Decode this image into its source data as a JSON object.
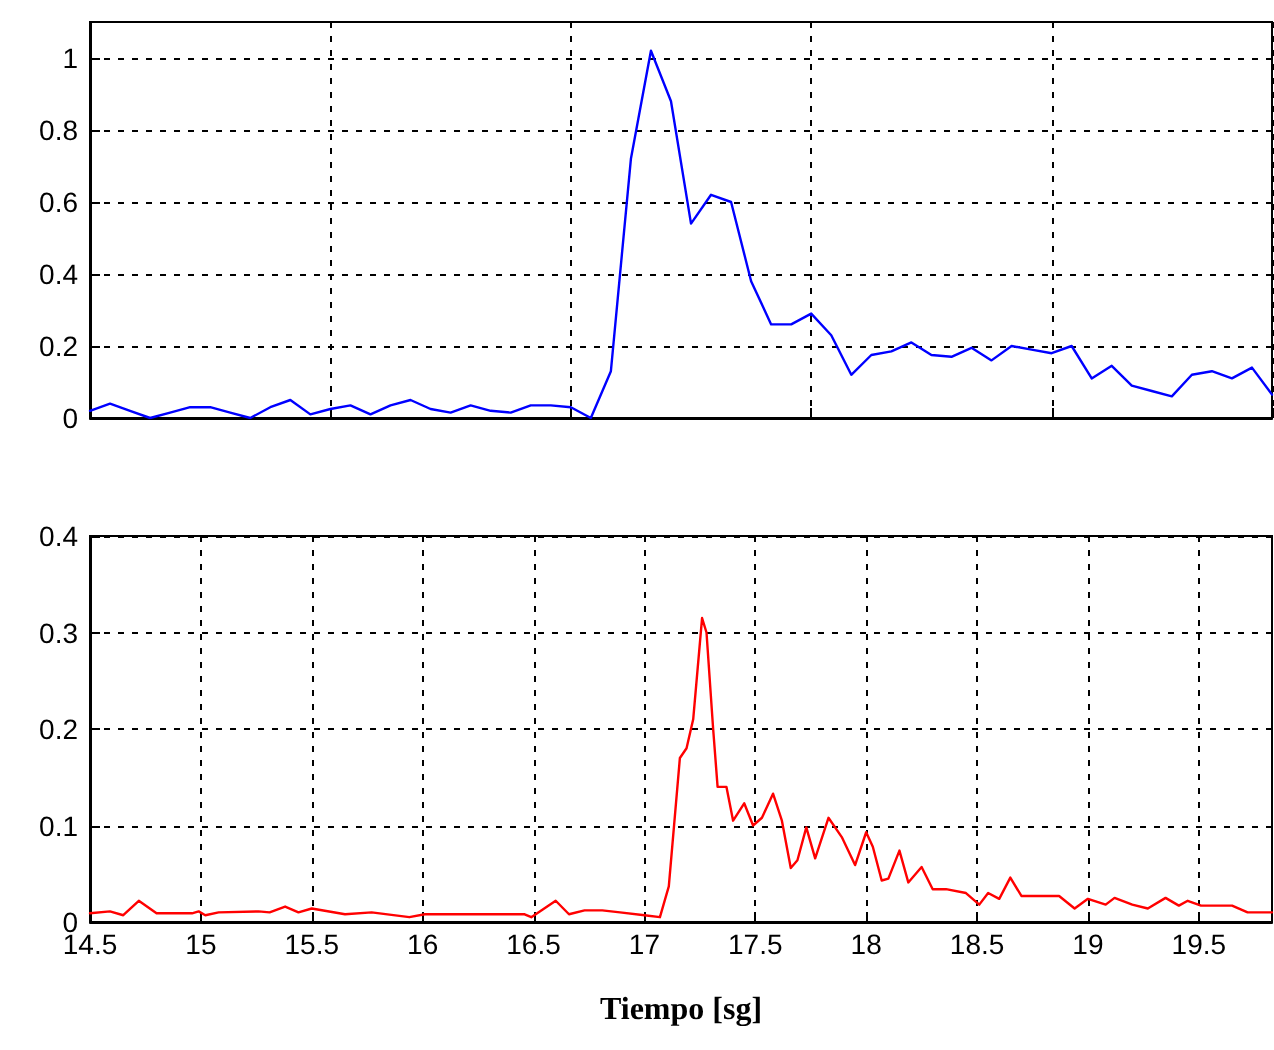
{
  "chart_data": [
    {
      "type": "line",
      "tick_labels": "y",
      "grid": true,
      "marker": "none",
      "line_style": "solid",
      "categories": [
        null,
        null,
        null,
        null,
        null,
        null,
        null,
        null,
        null,
        null,
        null,
        null,
        null,
        null,
        null,
        null,
        null,
        null,
        null,
        null,
        null,
        null,
        null,
        null,
        null,
        null,
        null,
        null,
        null,
        null,
        null,
        null,
        null,
        null,
        null,
        null,
        null,
        null,
        null,
        null,
        null,
        null,
        null,
        null,
        null,
        null,
        null,
        null,
        null,
        null,
        null,
        null,
        null,
        null,
        null,
        null,
        null,
        null,
        null,
        null
      ],
      "ylim": [
        0,
        1.1
      ],
      "yticks": [
        0,
        0.2,
        0.4,
        0.6,
        0.8,
        1
      ],
      "series": [
        {
          "color": "#0000ff",
          "values": [
            0.02,
            0.04,
            0.02,
            0.0,
            0.015,
            0.03,
            0.03,
            0.015,
            0.0,
            0.03,
            0.05,
            0.01,
            0.025,
            0.035,
            0.01,
            0.035,
            0.05,
            0.025,
            0.015,
            0.035,
            0.02,
            0.015,
            0.035,
            0.035,
            0.03,
            0.0,
            0.13,
            0.72,
            1.02,
            0.88,
            0.54,
            0.62,
            0.6,
            0.38,
            0.26,
            0.26,
            0.29,
            0.23,
            0.12,
            0.175,
            0.185,
            0.21,
            0.175,
            0.17,
            0.195,
            0.16,
            0.2,
            0.19,
            0.18,
            0.2,
            0.11,
            0.145,
            0.09,
            0.075,
            0.06,
            0.12,
            0.13,
            0.11,
            0.14,
            0.065
          ]
        }
      ]
    },
    {
      "type": "line",
      "grid": true,
      "marker": "none",
      "line_style": "solid",
      "xlabel": "Tiempo [sg]",
      "xlim": [
        14.5,
        19.83
      ],
      "xticks": [
        14.5,
        15,
        15.5,
        16,
        16.5,
        17,
        17.5,
        18,
        18.5,
        19,
        19.5
      ],
      "ylim": [
        0,
        0.4
      ],
      "yticks": [
        0,
        0.1,
        0.2,
        0.3,
        0.4
      ],
      "series": [
        {
          "color": "#ff0000",
          "x": [
            14.5,
            14.59,
            14.65,
            14.72,
            14.8,
            14.96,
            14.99,
            15.02,
            15.08,
            15.26,
            15.31,
            15.38,
            15.44,
            15.5,
            15.65,
            15.77,
            15.94,
            16.01,
            16.46,
            16.49,
            16.6,
            16.66,
            16.73,
            16.81,
            16.89,
            17.0,
            17.07,
            17.11,
            17.16,
            17.19,
            17.22,
            17.26,
            17.28,
            17.31,
            17.33,
            17.37,
            17.4,
            17.45,
            17.49,
            17.53,
            17.58,
            17.62,
            17.66,
            17.69,
            17.73,
            17.77,
            17.83,
            17.89,
            17.95,
            18.0,
            18.03,
            18.07,
            18.1,
            18.15,
            18.19,
            18.25,
            18.3,
            18.36,
            18.45,
            18.51,
            18.55,
            18.6,
            18.65,
            18.7,
            18.81,
            18.87,
            18.94,
            19.0,
            19.08,
            19.12,
            19.2,
            19.27,
            19.35,
            19.41,
            19.45,
            19.51,
            19.65,
            19.72,
            19.83
          ],
          "values": [
            0.009,
            0.011,
            0.007,
            0.022,
            0.009,
            0.009,
            0.011,
            0.007,
            0.01,
            0.011,
            0.01,
            0.016,
            0.01,
            0.014,
            0.008,
            0.01,
            0.005,
            0.008,
            0.008,
            0.005,
            0.022,
            0.008,
            0.012,
            0.012,
            0.01,
            0.007,
            0.005,
            0.037,
            0.17,
            0.18,
            0.21,
            0.315,
            0.3,
            0.2,
            0.14,
            0.14,
            0.105,
            0.123,
            0.1,
            0.108,
            0.133,
            0.105,
            0.056,
            0.064,
            0.098,
            0.066,
            0.108,
            0.088,
            0.059,
            0.093,
            0.078,
            0.043,
            0.045,
            0.074,
            0.041,
            0.057,
            0.034,
            0.034,
            0.03,
            0.018,
            0.03,
            0.024,
            0.046,
            0.027,
            0.027,
            0.027,
            0.014,
            0.024,
            0.018,
            0.025,
            0.018,
            0.014,
            0.025,
            0.017,
            0.022,
            0.017,
            0.017,
            0.01,
            0.01
          ]
        }
      ]
    }
  ]
}
